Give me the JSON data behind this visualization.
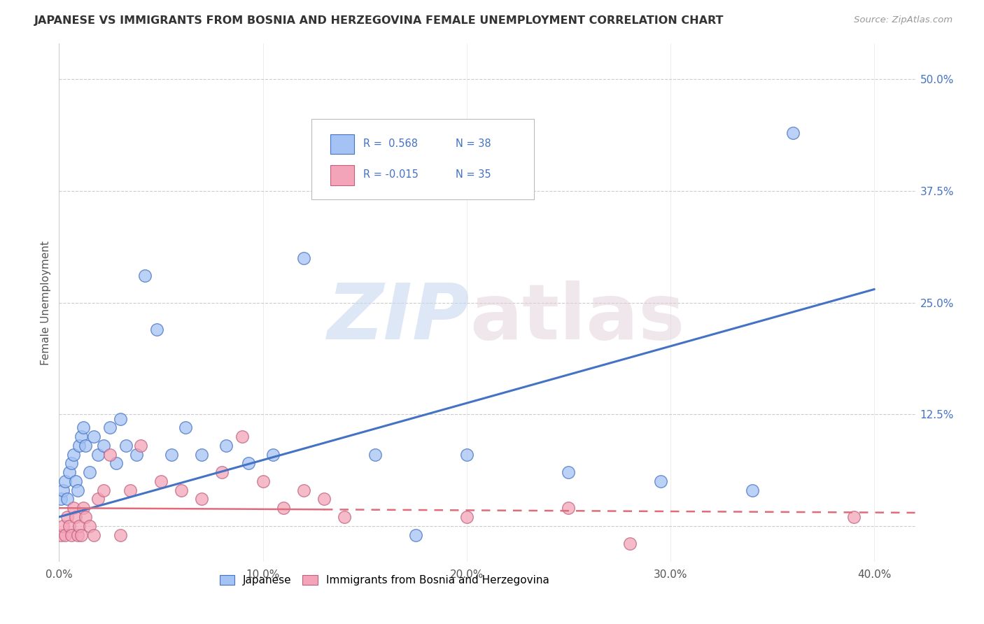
{
  "title": "JAPANESE VS IMMIGRANTS FROM BOSNIA AND HERZEGOVINA FEMALE UNEMPLOYMENT CORRELATION CHART",
  "source": "Source: ZipAtlas.com",
  "ylabel_label": "Female Unemployment",
  "xlim": [
    0.0,
    0.42
  ],
  "ylim": [
    -0.04,
    0.54
  ],
  "yticks": [
    0.0,
    0.125,
    0.25,
    0.375,
    0.5
  ],
  "xticks": [
    0.0,
    0.1,
    0.2,
    0.3,
    0.4
  ],
  "legend_R1": "R =  0.568",
  "legend_N1": "N = 38",
  "legend_R2": "R = -0.015",
  "legend_N2": "N = 35",
  "legend_label1": "Japanese",
  "legend_label2": "Immigrants from Bosnia and Herzegovina",
  "color_japanese": "#a4c2f4",
  "color_bosnia": "#f4a4b8",
  "color_blue_line": "#4472c4",
  "color_pink_line": "#e06c7a",
  "japanese_x": [
    0.001,
    0.002,
    0.003,
    0.004,
    0.005,
    0.006,
    0.007,
    0.008,
    0.009,
    0.01,
    0.011,
    0.012,
    0.013,
    0.015,
    0.017,
    0.019,
    0.022,
    0.025,
    0.028,
    0.03,
    0.033,
    0.038,
    0.042,
    0.048,
    0.055,
    0.062,
    0.07,
    0.082,
    0.093,
    0.105,
    0.12,
    0.155,
    0.175,
    0.2,
    0.25,
    0.295,
    0.34,
    0.36
  ],
  "japanese_y": [
    0.03,
    0.04,
    0.05,
    0.03,
    0.06,
    0.07,
    0.08,
    0.05,
    0.04,
    0.09,
    0.1,
    0.11,
    0.09,
    0.06,
    0.1,
    0.08,
    0.09,
    0.11,
    0.07,
    0.12,
    0.09,
    0.08,
    0.28,
    0.22,
    0.08,
    0.11,
    0.08,
    0.09,
    0.07,
    0.08,
    0.3,
    0.08,
    -0.01,
    0.08,
    0.06,
    0.05,
    0.04,
    0.44
  ],
  "bosnia_x": [
    0.001,
    0.002,
    0.003,
    0.004,
    0.005,
    0.006,
    0.007,
    0.008,
    0.009,
    0.01,
    0.011,
    0.012,
    0.013,
    0.015,
    0.017,
    0.019,
    0.022,
    0.025,
    0.03,
    0.035,
    0.04,
    0.05,
    0.06,
    0.07,
    0.08,
    0.09,
    0.1,
    0.11,
    0.12,
    0.13,
    0.14,
    0.2,
    0.25,
    0.28,
    0.39
  ],
  "bosnia_y": [
    -0.01,
    0.0,
    -0.01,
    0.01,
    0.0,
    -0.01,
    0.02,
    0.01,
    -0.01,
    0.0,
    -0.01,
    0.02,
    0.01,
    0.0,
    -0.01,
    0.03,
    0.04,
    0.08,
    -0.01,
    0.04,
    0.09,
    0.05,
    0.04,
    0.03,
    0.06,
    0.1,
    0.05,
    0.02,
    0.04,
    0.03,
    0.01,
    0.01,
    0.02,
    -0.02,
    0.01
  ],
  "blue_line_x": [
    0.0,
    0.4
  ],
  "blue_line_y": [
    0.01,
    0.265
  ],
  "pink_line_x": [
    0.0,
    0.4
  ],
  "pink_line_y": [
    0.02,
    0.015
  ]
}
